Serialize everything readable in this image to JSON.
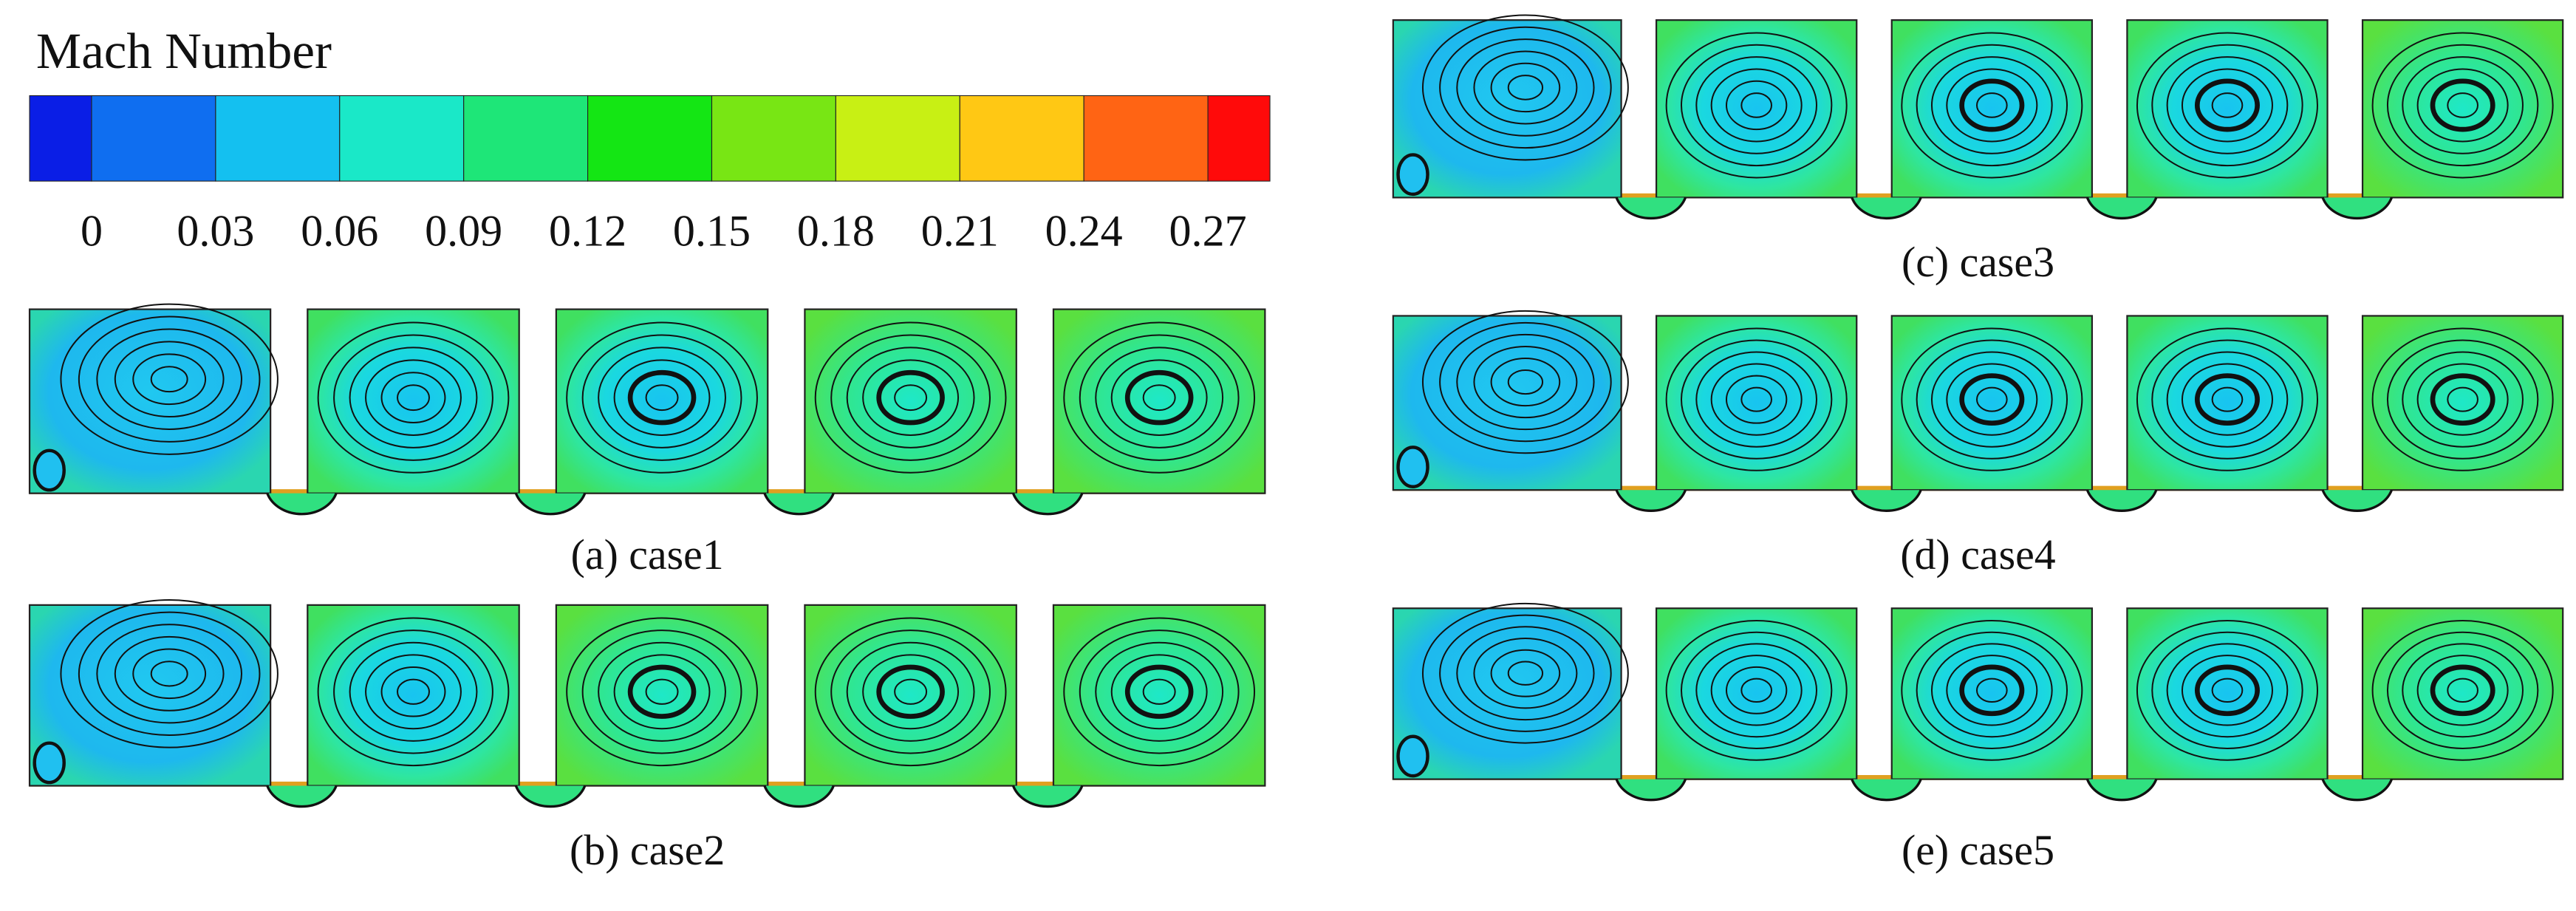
{
  "colorbar": {
    "title": "Mach Number",
    "clim": [
      -0.015,
      0.285
    ],
    "ticks": [
      0,
      0.03,
      0.06,
      0.09,
      0.12,
      0.15,
      0.18,
      0.21,
      0.24,
      0.27
    ],
    "colors": [
      "#0a1ee6",
      "#0f6ef0",
      "#14c0f0",
      "#1ae8c8",
      "#1ee678",
      "#14e614",
      "#78e614",
      "#c8f014",
      "#ffc814",
      "#ff6414",
      "#ff0a0a"
    ]
  },
  "panels": [
    {
      "caption": "(a) case1"
    },
    {
      "caption": "(b) case2"
    },
    {
      "caption": "(c) case3"
    },
    {
      "caption": "(d) case4"
    },
    {
      "caption": "(e) case5"
    }
  ]
}
